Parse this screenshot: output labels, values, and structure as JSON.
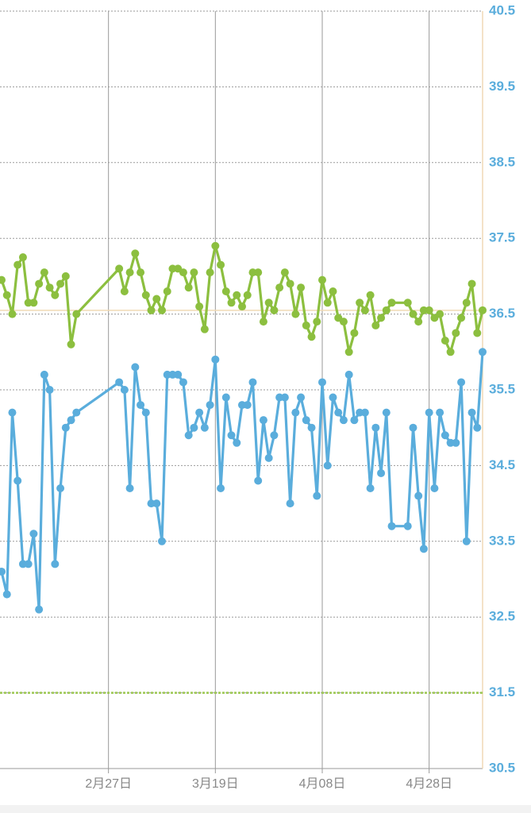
{
  "chart_data": {
    "type": "line",
    "x": [
      0,
      1,
      2,
      3,
      4,
      5,
      6,
      7,
      8,
      9,
      10,
      11,
      12,
      13,
      14,
      22,
      23,
      24,
      25,
      26,
      27,
      28,
      29,
      30,
      31,
      32,
      33,
      34,
      35,
      36,
      37,
      38,
      39,
      40,
      41,
      42,
      43,
      44,
      45,
      46,
      47,
      48,
      49,
      50,
      51,
      52,
      53,
      54,
      55,
      56,
      57,
      58,
      59,
      60,
      61,
      62,
      63,
      64,
      65,
      66,
      67,
      68,
      69,
      70,
      71,
      72,
      73,
      76,
      77,
      78,
      79,
      80,
      81,
      82,
      83,
      84,
      85,
      86,
      87,
      88,
      89,
      90
    ],
    "xlim": [
      0,
      90
    ],
    "xticks": [
      {
        "value": 20,
        "label": "2月27日"
      },
      {
        "value": 40,
        "label": "3月19日"
      },
      {
        "value": 60,
        "label": "4月08日"
      },
      {
        "value": 80,
        "label": "4月28日"
      }
    ],
    "ylim": [
      30.5,
      40.5
    ],
    "yticks": [
      30.5,
      31.5,
      32.5,
      33.5,
      34.5,
      35.5,
      36.5,
      37.5,
      38.5,
      39.5,
      40.5
    ],
    "grid": true,
    "reference_lines": [
      {
        "value": 36.55,
        "color": "#f0d9b5",
        "dash": false
      },
      {
        "value": 31.5,
        "color": "#9cc852",
        "dash": true
      }
    ],
    "series": [
      {
        "color": "#8cbf3f",
        "values": [
          36.95,
          36.75,
          36.5,
          37.15,
          37.25,
          36.65,
          36.65,
          36.9,
          37.05,
          36.85,
          36.75,
          36.9,
          37.0,
          36.1,
          36.5,
          37.1,
          36.8,
          37.05,
          37.3,
          37.05,
          36.75,
          36.55,
          36.7,
          36.55,
          36.8,
          37.1,
          37.1,
          37.05,
          36.85,
          37.05,
          36.6,
          36.3,
          37.05,
          37.4,
          37.15,
          36.8,
          36.65,
          36.75,
          36.6,
          36.75,
          37.05,
          37.05,
          36.4,
          36.65,
          36.55,
          36.85,
          37.05,
          36.9,
          36.5,
          36.85,
          36.35,
          36.2,
          36.4,
          36.95,
          36.65,
          36.8,
          36.45,
          36.4,
          36.0,
          36.25,
          36.65,
          36.55,
          36.75,
          36.35,
          36.45,
          36.55,
          36.65,
          36.65,
          36.5,
          36.4,
          36.55,
          36.55,
          36.45,
          36.5,
          36.15,
          36.0,
          36.25,
          36.45,
          36.65,
          36.9,
          36.25,
          36.55
        ]
      },
      {
        "color": "#5aaddc",
        "values": [
          33.1,
          32.8,
          35.2,
          34.3,
          33.2,
          33.2,
          33.6,
          32.6,
          35.7,
          35.5,
          33.2,
          34.2,
          35.0,
          35.1,
          35.2,
          35.6,
          35.5,
          34.2,
          35.8,
          35.3,
          35.2,
          34.0,
          34.0,
          33.5,
          35.7,
          35.7,
          35.7,
          35.6,
          34.9,
          35.0,
          35.2,
          35.0,
          35.3,
          35.9,
          34.2,
          35.4,
          34.9,
          34.8,
          35.3,
          35.3,
          35.6,
          34.3,
          35.1,
          34.6,
          34.9,
          35.4,
          35.4,
          34.0,
          35.2,
          35.4,
          35.1,
          35.0,
          34.1,
          35.6,
          34.5,
          35.4,
          35.2,
          35.1,
          35.7,
          35.1,
          35.2,
          35.2,
          34.2,
          35.0,
          34.4,
          35.2,
          33.7,
          33.7,
          35.0,
          34.1,
          33.4,
          35.2,
          34.2,
          35.2,
          34.9,
          34.8,
          34.8,
          35.6,
          33.5,
          35.2,
          35.0,
          36.0
        ]
      }
    ]
  }
}
